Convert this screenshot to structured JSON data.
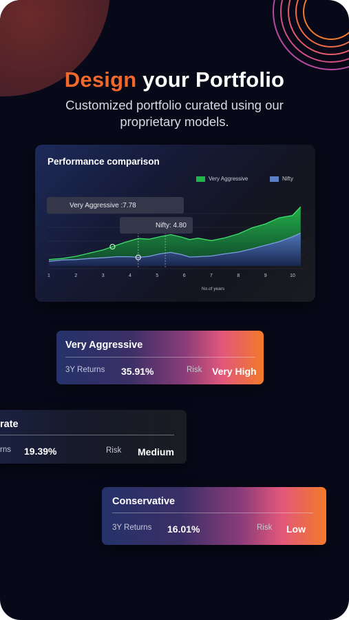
{
  "header": {
    "title_accent": "Design",
    "title_rest": " your Portfolio",
    "subtitle": "Customized portfolio curated using our proprietary models."
  },
  "chart_card": {
    "title": "Performance comparison",
    "tooltip_aggressive": "Very Aggressive :7.78",
    "tooltip_nifty": "Nifty: 4.80",
    "xlabel": "No.of years"
  },
  "chart_data": {
    "type": "area",
    "title": "Performance comparison",
    "xlabel": "No.of years",
    "ylabel": "",
    "x": [
      1,
      2,
      3,
      4,
      5,
      6,
      7,
      8,
      9,
      10
    ],
    "xlim": [
      1,
      10
    ],
    "ylim": [
      0,
      17
    ],
    "grid": true,
    "legend_position": "top-right",
    "series": [
      {
        "name": "Very Aggressive",
        "color": "#22b34a",
        "points": [
          [
            1.0,
            1.4
          ],
          [
            1.5,
            1.7
          ],
          [
            2.0,
            2.3
          ],
          [
            2.5,
            3.2
          ],
          [
            3.0,
            4.1
          ],
          [
            3.35,
            5.0
          ],
          [
            3.8,
            6.2
          ],
          [
            4.3,
            7.3
          ],
          [
            4.7,
            7.1
          ],
          [
            5.1,
            7.8
          ],
          [
            5.5,
            8.4
          ],
          [
            5.9,
            7.7
          ],
          [
            6.2,
            7.0
          ],
          [
            6.5,
            7.4
          ],
          [
            7.0,
            6.7
          ],
          [
            7.5,
            7.5
          ],
          [
            8.0,
            8.6
          ],
          [
            8.5,
            10.3
          ],
          [
            9.0,
            11.4
          ],
          [
            9.5,
            13.1
          ],
          [
            10.0,
            13.8
          ],
          [
            10.3,
            16.2
          ]
        ]
      },
      {
        "name": "Nifty",
        "color": "#5b7fc7",
        "points": [
          [
            1.0,
            0.9
          ],
          [
            1.5,
            1.3
          ],
          [
            2.0,
            1.4
          ],
          [
            2.5,
            1.7
          ],
          [
            3.0,
            1.9
          ],
          [
            3.5,
            2.2
          ],
          [
            4.0,
            2.2
          ],
          [
            4.3,
            2.0
          ],
          [
            4.7,
            2.3
          ],
          [
            5.1,
            3.0
          ],
          [
            5.5,
            3.4
          ],
          [
            5.9,
            2.8
          ],
          [
            6.2,
            2.1
          ],
          [
            6.5,
            2.2
          ],
          [
            7.0,
            2.4
          ],
          [
            7.5,
            3.0
          ],
          [
            8.0,
            3.5
          ],
          [
            8.5,
            4.4
          ],
          [
            9.0,
            5.4
          ],
          [
            9.5,
            6.4
          ],
          [
            10.0,
            7.8
          ],
          [
            10.3,
            8.8
          ]
        ]
      }
    ],
    "markers": [
      {
        "series": "Very Aggressive",
        "x": 3.35,
        "y": 5.0
      },
      {
        "series": "Nifty",
        "x": 4.3,
        "y": 2.0
      }
    ],
    "guides_x": [
      4.3,
      5.3
    ]
  },
  "portfolios": [
    {
      "name": "Very Aggressive",
      "returns_label": "3Y Returns",
      "returns_value": "35.91%",
      "risk_label": "Risk",
      "risk_value": "Very High"
    },
    {
      "name": "rate",
      "returns_label": "rns",
      "returns_value": "19.39%",
      "risk_label": "Risk",
      "risk_value": "Medium"
    },
    {
      "name": "Conservative",
      "returns_label": "3Y Returns",
      "returns_value": "16.01%",
      "risk_label": "Risk",
      "risk_value": "Low"
    }
  ]
}
